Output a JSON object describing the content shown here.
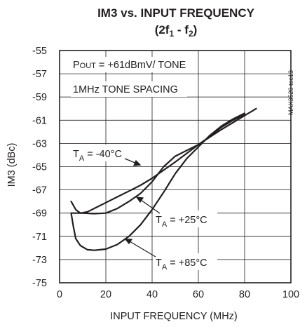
{
  "chart_data": {
    "type": "line",
    "title_line1": "IM3 vs. INPUT FREQUENCY",
    "title_line2": {
      "open": "(2f",
      "sub1": "1",
      "mid": " - f",
      "sub2": "2",
      "close": ")"
    },
    "xlabel": "INPUT FREQUENCY (MHz)",
    "ylabel": "IM3 (dBc)",
    "xlim": [
      0,
      100
    ],
    "ylim": [
      -75,
      -55
    ],
    "x_ticks": [
      "0",
      "20",
      "40",
      "60",
      "80",
      "100"
    ],
    "y_ticks": [
      "-55",
      "-57",
      "-59",
      "-61",
      "-63",
      "-65",
      "-67",
      "-69",
      "-71",
      "-73",
      "-75"
    ],
    "grid": true,
    "side_label": "MAX3520 toc13",
    "annotations": {
      "pout": {
        "main": "P",
        "sub": "OUT",
        "rest": " = +61dBmV/ TONE"
      },
      "spacing": "1MHz TONE SPACING",
      "ta_m40": {
        "main": "T",
        "sub": "A",
        "rest": " = -40°C"
      },
      "ta_25": {
        "main": "T",
        "sub": "A",
        "rest": " = +25°C"
      },
      "ta_85": {
        "main": "T",
        "sub": "A",
        "rest": " = +85°C"
      }
    },
    "series": [
      {
        "points": [
          [
            5,
            -68
          ],
          [
            7,
            -68.7
          ],
          [
            9,
            -69.0
          ],
          [
            12,
            -68.9
          ],
          [
            16,
            -68.5
          ],
          [
            20,
            -68.1
          ],
          [
            25,
            -67.6
          ],
          [
            30,
            -67.1
          ],
          [
            35,
            -66.6
          ],
          [
            40,
            -66.0
          ],
          [
            50,
            -64.6
          ],
          [
            60,
            -63.1
          ],
          [
            70,
            -61.8
          ],
          [
            80,
            -60.6
          ],
          [
            85,
            -60.0
          ]
        ]
      },
      {
        "points": [
          [
            5,
            -69.0
          ],
          [
            10,
            -69.0
          ],
          [
            15,
            -69.05
          ],
          [
            20,
            -69.0
          ],
          [
            25,
            -68.6
          ],
          [
            30,
            -68.0
          ],
          [
            35,
            -67.3
          ],
          [
            40,
            -66.3
          ],
          [
            45,
            -65.0
          ],
          [
            50,
            -64.1
          ],
          [
            55,
            -63.6
          ],
          [
            60,
            -63.1
          ],
          [
            65,
            -62.4
          ],
          [
            70,
            -61.6
          ],
          [
            75,
            -61.0
          ],
          [
            80,
            -60.5
          ]
        ]
      },
      {
        "points": [
          [
            5,
            -69.0
          ],
          [
            6,
            -70.2
          ],
          [
            7,
            -71.2
          ],
          [
            9,
            -71.8
          ],
          [
            12,
            -72.15
          ],
          [
            15,
            -72.2
          ],
          [
            20,
            -72.1
          ],
          [
            25,
            -71.7
          ],
          [
            30,
            -71.0
          ],
          [
            35,
            -70.0
          ],
          [
            40,
            -68.7
          ],
          [
            45,
            -67.2
          ],
          [
            50,
            -65.6
          ],
          [
            55,
            -64.3
          ],
          [
            60,
            -63.3
          ],
          [
            65,
            -62.3
          ],
          [
            70,
            -61.5
          ],
          [
            75,
            -60.9
          ],
          [
            80,
            -60.4
          ]
        ]
      }
    ]
  }
}
